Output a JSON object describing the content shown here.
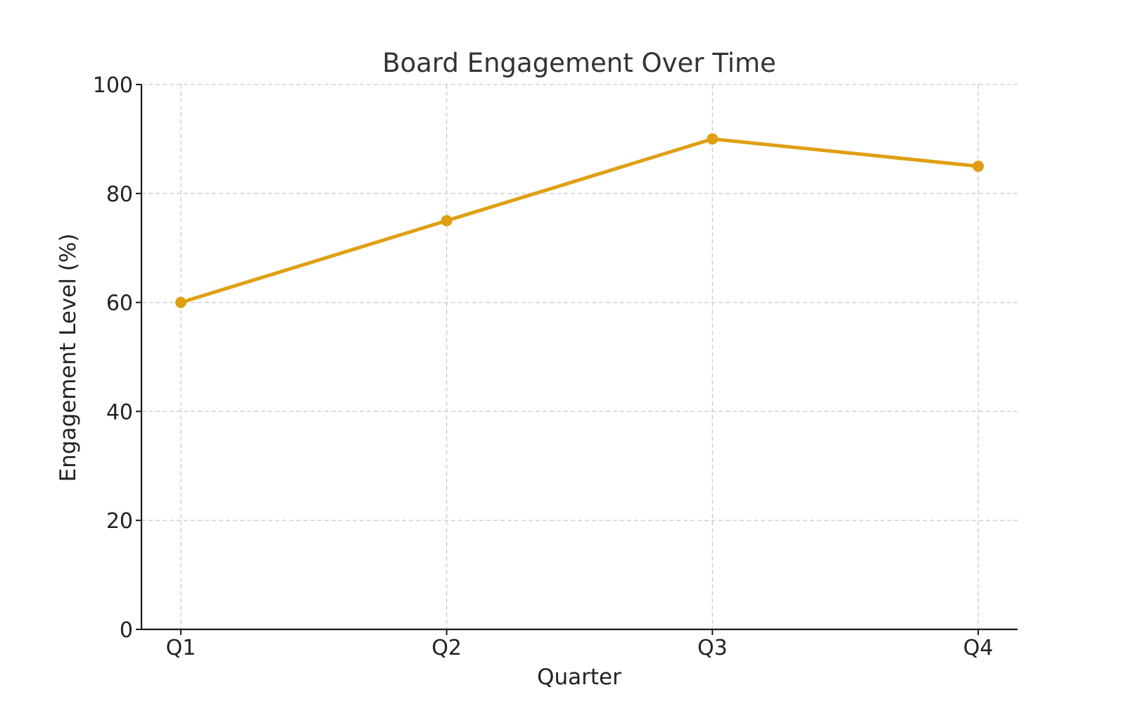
{
  "chart_data": {
    "type": "line",
    "title": "Board Engagement Over Time",
    "xlabel": "Quarter",
    "ylabel": "Engagement Level (%)",
    "categories": [
      "Q1",
      "Q2",
      "Q3",
      "Q4"
    ],
    "series": [
      {
        "values": [
          60,
          75,
          90,
          85
        ],
        "color": "#E09F12"
      }
    ],
    "ylim": [
      0,
      100
    ],
    "yticks": [
      0,
      20,
      40,
      60,
      80,
      100
    ],
    "grid": true,
    "markers": true
  }
}
